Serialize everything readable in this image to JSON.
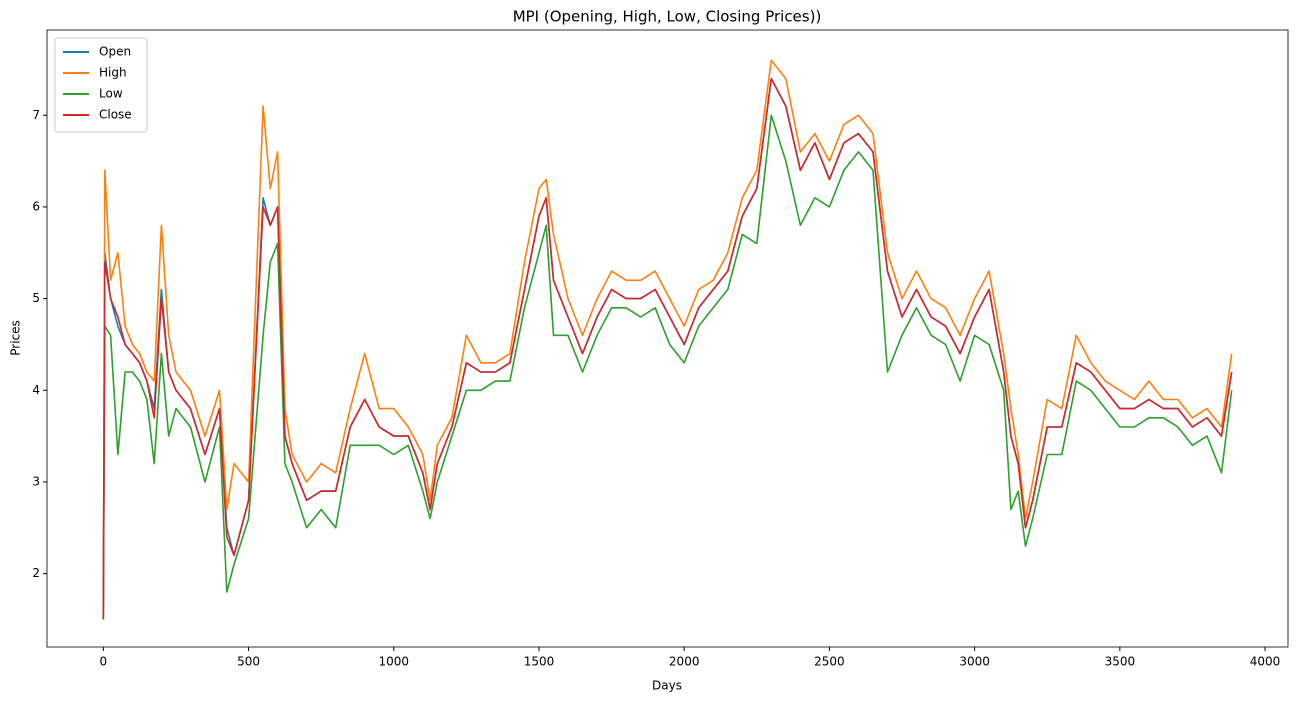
{
  "chart_data": {
    "type": "line",
    "title": "MPI (Opening, High, Low, Closing Prices))",
    "x_label": "Days",
    "y_label": "Prices",
    "x": [
      0,
      5,
      25,
      50,
      75,
      100,
      125,
      150,
      175,
      200,
      225,
      250,
      300,
      350,
      400,
      425,
      450,
      500,
      550,
      575,
      600,
      625,
      650,
      700,
      750,
      800,
      850,
      900,
      950,
      1000,
      1050,
      1100,
      1125,
      1150,
      1200,
      1250,
      1300,
      1350,
      1400,
      1450,
      1500,
      1525,
      1550,
      1600,
      1650,
      1700,
      1750,
      1800,
      1850,
      1900,
      1950,
      2000,
      2050,
      2100,
      2150,
      2200,
      2250,
      2300,
      2350,
      2400,
      2450,
      2500,
      2550,
      2600,
      2650,
      2700,
      2750,
      2800,
      2850,
      2900,
      2950,
      3000,
      3050,
      3100,
      3125,
      3150,
      3175,
      3200,
      3250,
      3300,
      3350,
      3400,
      3450,
      3500,
      3550,
      3600,
      3650,
      3700,
      3750,
      3800,
      3850,
      3885
    ],
    "series": [
      {
        "name": "Open",
        "color": "#1f77b4",
        "values": [
          1.5,
          5.5,
          5.0,
          4.7,
          4.5,
          4.4,
          4.3,
          4.1,
          3.8,
          5.1,
          4.2,
          4.0,
          3.8,
          3.3,
          3.8,
          2.5,
          2.2,
          2.8,
          6.1,
          5.8,
          6.0,
          3.5,
          3.2,
          2.8,
          2.9,
          2.9,
          3.6,
          3.9,
          3.6,
          3.5,
          3.5,
          3.1,
          2.7,
          3.2,
          3.6,
          4.3,
          4.2,
          4.2,
          4.3,
          5.1,
          5.9,
          6.1,
          5.2,
          4.8,
          4.4,
          4.8,
          5.1,
          5.0,
          5.0,
          5.1,
          4.8,
          4.5,
          4.9,
          5.1,
          5.3,
          5.9,
          6.2,
          7.4,
          7.1,
          6.4,
          6.7,
          6.3,
          6.7,
          6.8,
          6.6,
          5.3,
          4.8,
          5.1,
          4.8,
          4.7,
          4.4,
          4.8,
          5.1,
          4.2,
          3.5,
          3.2,
          2.5,
          2.8,
          3.6,
          3.6,
          4.3,
          4.2,
          4.0,
          3.8,
          3.8,
          3.9,
          3.8,
          3.8,
          3.6,
          3.7,
          3.5,
          4.2
        ]
      },
      {
        "name": "High",
        "color": "#ff7f0e",
        "values": [
          1.6,
          6.4,
          5.2,
          5.5,
          4.7,
          4.5,
          4.4,
          4.2,
          4.1,
          5.8,
          4.6,
          4.2,
          4.0,
          3.5,
          4.0,
          2.7,
          3.2,
          3.0,
          7.1,
          6.2,
          6.6,
          3.8,
          3.3,
          3.0,
          3.2,
          3.1,
          3.8,
          4.4,
          3.8,
          3.8,
          3.6,
          3.3,
          2.8,
          3.4,
          3.7,
          4.6,
          4.3,
          4.3,
          4.4,
          5.4,
          6.2,
          6.3,
          5.7,
          5.0,
          4.6,
          5.0,
          5.3,
          5.2,
          5.2,
          5.3,
          5.0,
          4.7,
          5.1,
          5.2,
          5.5,
          6.1,
          6.4,
          7.6,
          7.4,
          6.6,
          6.8,
          6.5,
          6.9,
          7.0,
          6.8,
          5.5,
          5.0,
          5.3,
          5.0,
          4.9,
          4.6,
          5.0,
          5.3,
          4.4,
          3.8,
          3.3,
          2.6,
          3.0,
          3.9,
          3.8,
          4.6,
          4.3,
          4.1,
          4.0,
          3.9,
          4.1,
          3.9,
          3.9,
          3.7,
          3.8,
          3.6,
          4.4
        ]
      },
      {
        "name": "Low",
        "color": "#2ca02c",
        "values": [
          1.5,
          4.7,
          4.6,
          3.3,
          4.2,
          4.2,
          4.1,
          3.9,
          3.2,
          4.4,
          3.5,
          3.8,
          3.6,
          3.0,
          3.6,
          1.8,
          2.1,
          2.6,
          4.6,
          5.4,
          5.6,
          3.2,
          3.0,
          2.5,
          2.7,
          2.5,
          3.4,
          3.4,
          3.4,
          3.3,
          3.4,
          2.9,
          2.6,
          3.0,
          3.5,
          4.0,
          4.0,
          4.1,
          4.1,
          4.9,
          5.5,
          5.8,
          4.6,
          4.6,
          4.2,
          4.6,
          4.9,
          4.9,
          4.8,
          4.9,
          4.5,
          4.3,
          4.7,
          4.9,
          5.1,
          5.7,
          5.6,
          7.0,
          6.5,
          5.8,
          6.1,
          6.0,
          6.4,
          6.6,
          6.4,
          4.2,
          4.6,
          4.9,
          4.6,
          4.5,
          4.1,
          4.6,
          4.5,
          4.0,
          2.7,
          2.9,
          2.3,
          2.6,
          3.3,
          3.3,
          4.1,
          4.0,
          3.8,
          3.6,
          3.6,
          3.7,
          3.7,
          3.6,
          3.4,
          3.5,
          3.1,
          4.0
        ]
      },
      {
        "name": "Close",
        "color": "#d62728",
        "values": [
          1.5,
          5.4,
          5.0,
          4.8,
          4.5,
          4.4,
          4.3,
          4.1,
          3.7,
          5.0,
          4.2,
          4.0,
          3.8,
          3.3,
          3.8,
          2.4,
          2.2,
          2.8,
          6.0,
          5.8,
          6.0,
          3.5,
          3.2,
          2.8,
          2.9,
          2.9,
          3.6,
          3.9,
          3.6,
          3.5,
          3.5,
          3.1,
          2.7,
          3.2,
          3.6,
          4.3,
          4.2,
          4.2,
          4.3,
          5.1,
          5.9,
          6.1,
          5.2,
          4.8,
          4.4,
          4.8,
          5.1,
          5.0,
          5.0,
          5.1,
          4.8,
          4.5,
          4.9,
          5.1,
          5.3,
          5.9,
          6.2,
          7.4,
          7.1,
          6.4,
          6.7,
          6.3,
          6.7,
          6.8,
          6.6,
          5.3,
          4.8,
          5.1,
          4.8,
          4.7,
          4.4,
          4.8,
          5.1,
          4.2,
          3.5,
          3.2,
          2.5,
          2.8,
          3.6,
          3.6,
          4.3,
          4.2,
          4.0,
          3.8,
          3.8,
          3.9,
          3.8,
          3.8,
          3.6,
          3.7,
          3.5,
          4.2
        ]
      }
    ],
    "xlim": [
      -194,
      4079
    ],
    "xticks": [
      0,
      500,
      1000,
      1500,
      2000,
      2500,
      3000,
      3500,
      4000
    ],
    "ylim": [
      1.2,
      7.93
    ],
    "yticks": [
      2,
      3,
      4,
      5,
      6,
      7
    ],
    "legend": "upper left",
    "grid": false
  }
}
